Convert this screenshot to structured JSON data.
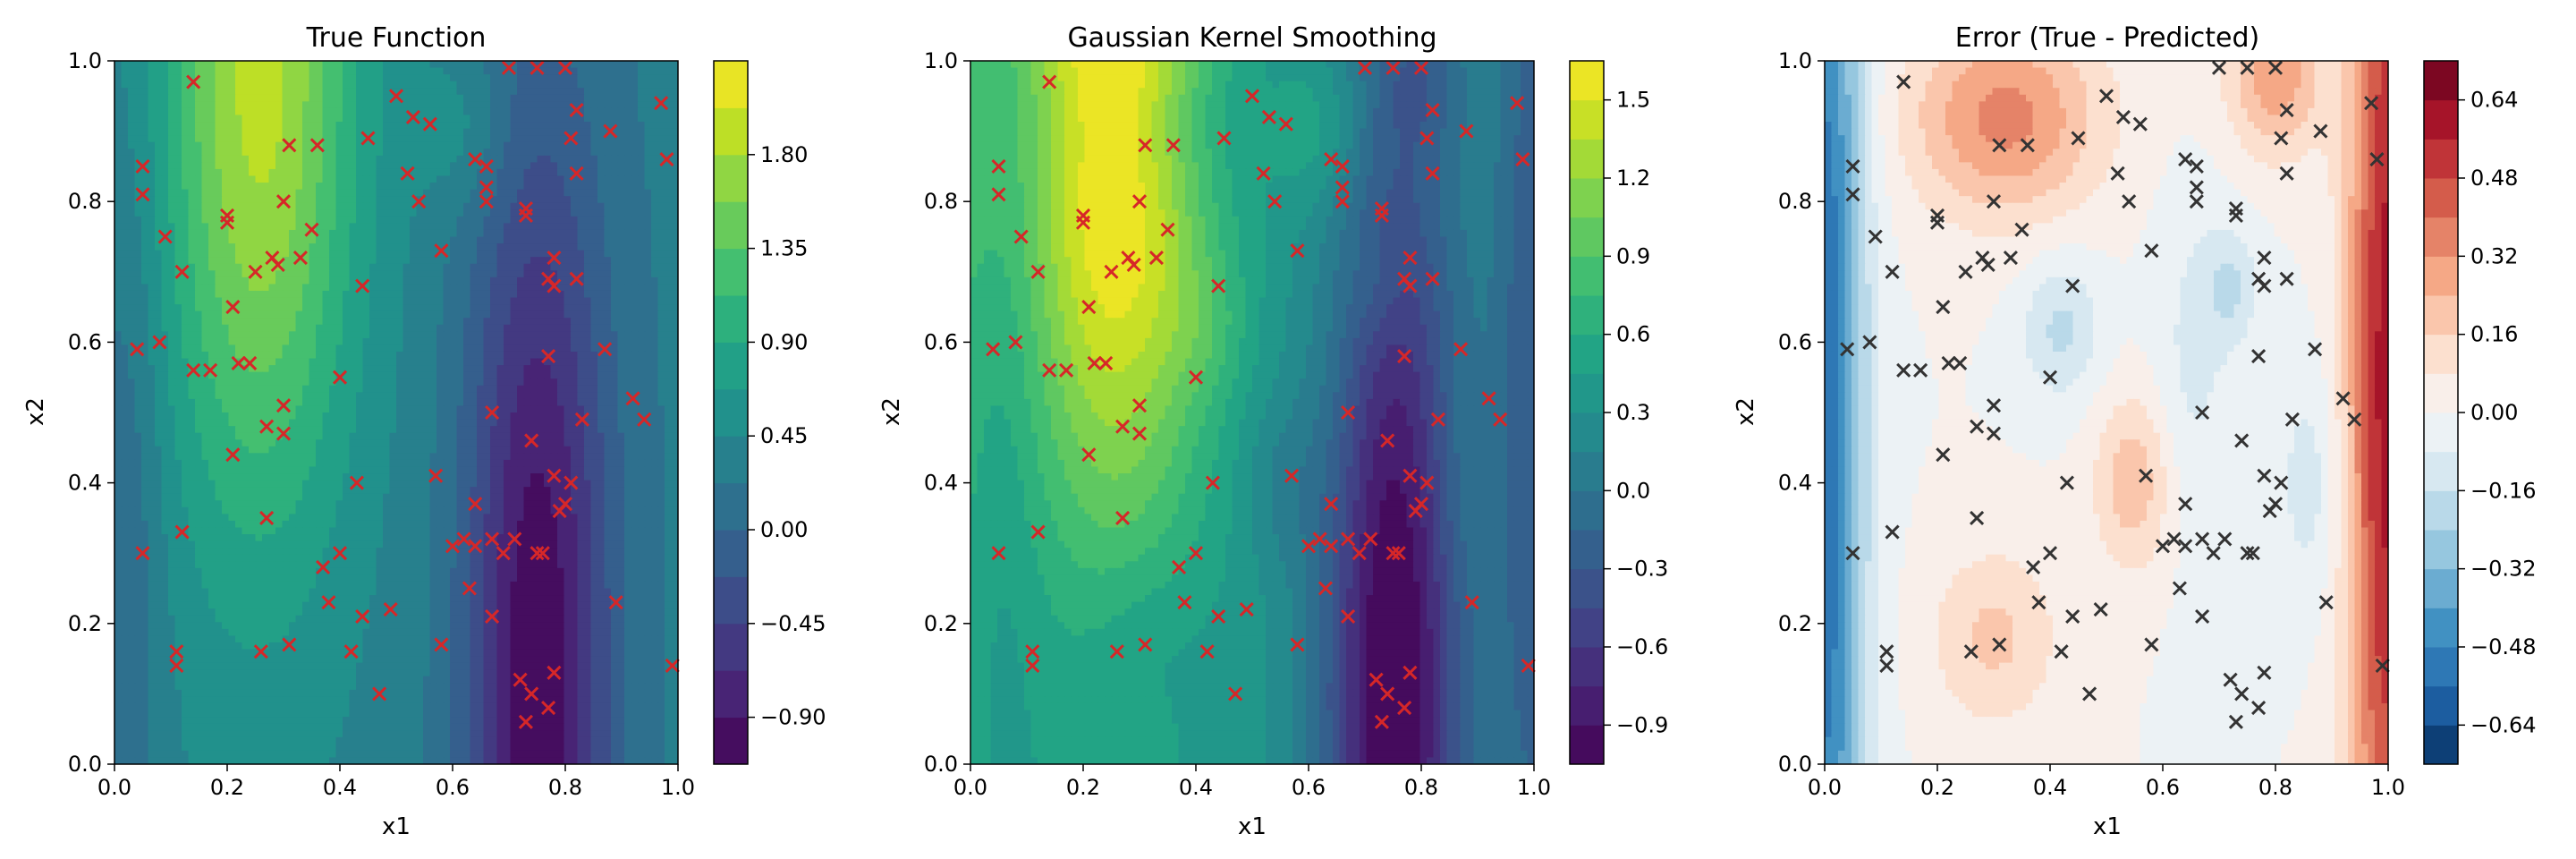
{
  "chart_data": [
    {
      "type": "contour",
      "title": "True Function",
      "xlabel": "x1",
      "ylabel": "x2",
      "xlim": [
        0.0,
        1.0
      ],
      "ylim": [
        0.0,
        1.0
      ],
      "x_ticks": [
        "0.0",
        "0.2",
        "0.4",
        "0.6",
        "0.8",
        "1.0"
      ],
      "y_ticks": [
        "0.0",
        "0.2",
        "0.4",
        "0.6",
        "0.8",
        "1.0"
      ],
      "colormap": "viridis",
      "marker_color": "#d62728",
      "marker": "x",
      "colorbar": {
        "range": [
          -1.125,
          2.25
        ],
        "levels": 15,
        "ticks": [
          "−0.90",
          "−0.45",
          "0.00",
          "0.45",
          "0.90",
          "1.35",
          "1.80"
        ],
        "tick_values": [
          -0.9,
          -0.45,
          0.0,
          0.45,
          0.9,
          1.35,
          1.8
        ]
      }
    },
    {
      "type": "contour",
      "title": "Gaussian Kernel Smoothing",
      "xlabel": "x1",
      "ylabel": "x2",
      "xlim": [
        0.0,
        1.0
      ],
      "ylim": [
        0.0,
        1.0
      ],
      "x_ticks": [
        "0.0",
        "0.2",
        "0.4",
        "0.6",
        "0.8",
        "1.0"
      ],
      "y_ticks": [
        "0.0",
        "0.2",
        "0.4",
        "0.6",
        "0.8",
        "1.0"
      ],
      "colormap": "viridis",
      "marker_color": "#d62728",
      "marker": "x",
      "colorbar": {
        "range": [
          -1.05,
          1.65
        ],
        "levels": 18,
        "ticks": [
          "−0.9",
          "−0.6",
          "−0.3",
          "0.0",
          "0.3",
          "0.6",
          "0.9",
          "1.2",
          "1.5"
        ],
        "tick_values": [
          -0.9,
          -0.6,
          -0.3,
          0.0,
          0.3,
          0.6,
          0.9,
          1.2,
          1.5
        ]
      }
    },
    {
      "type": "contour",
      "title": "Error (True - Predicted)",
      "xlabel": "x1",
      "ylabel": "x2",
      "xlim": [
        0.0,
        1.0
      ],
      "ylim": [
        0.0,
        1.0
      ],
      "x_ticks": [
        "0.0",
        "0.2",
        "0.4",
        "0.6",
        "0.8",
        "1.0"
      ],
      "y_ticks": [
        "0.0",
        "0.2",
        "0.4",
        "0.6",
        "0.8",
        "1.0"
      ],
      "colormap": "RdBu_r",
      "marker_color": "#333333",
      "marker": "x",
      "colorbar": {
        "range": [
          -0.72,
          0.72
        ],
        "levels": 18,
        "ticks": [
          "−0.64",
          "−0.48",
          "−0.32",
          "−0.16",
          "0.00",
          "0.16",
          "0.32",
          "0.48",
          "0.64"
        ],
        "tick_values": [
          -0.64,
          -0.48,
          -0.32,
          -0.16,
          0.0,
          0.16,
          0.32,
          0.48,
          0.64
        ]
      }
    }
  ],
  "sample_points": [
    [
      0.04,
      0.59
    ],
    [
      0.05,
      0.85
    ],
    [
      0.05,
      0.81
    ],
    [
      0.05,
      0.3
    ],
    [
      0.08,
      0.6
    ],
    [
      0.09,
      0.75
    ],
    [
      0.11,
      0.16
    ],
    [
      0.11,
      0.14
    ],
    [
      0.12,
      0.33
    ],
    [
      0.12,
      0.7
    ],
    [
      0.14,
      0.97
    ],
    [
      0.14,
      0.56
    ],
    [
      0.17,
      0.56
    ],
    [
      0.2,
      0.77
    ],
    [
      0.2,
      0.78
    ],
    [
      0.21,
      0.44
    ],
    [
      0.21,
      0.65
    ],
    [
      0.22,
      0.57
    ],
    [
      0.24,
      0.57
    ],
    [
      0.25,
      0.7
    ],
    [
      0.26,
      0.16
    ],
    [
      0.27,
      0.35
    ],
    [
      0.27,
      0.48
    ],
    [
      0.28,
      0.72
    ],
    [
      0.29,
      0.71
    ],
    [
      0.3,
      0.47
    ],
    [
      0.3,
      0.51
    ],
    [
      0.3,
      0.8
    ],
    [
      0.31,
      0.88
    ],
    [
      0.31,
      0.17
    ],
    [
      0.33,
      0.72
    ],
    [
      0.35,
      0.76
    ],
    [
      0.36,
      0.88
    ],
    [
      0.37,
      0.28
    ],
    [
      0.38,
      0.23
    ],
    [
      0.4,
      0.55
    ],
    [
      0.4,
      0.3
    ],
    [
      0.42,
      0.16
    ],
    [
      0.43,
      0.4
    ],
    [
      0.44,
      0.68
    ],
    [
      0.44,
      0.21
    ],
    [
      0.45,
      0.89
    ],
    [
      0.47,
      0.1
    ],
    [
      0.49,
      0.22
    ],
    [
      0.5,
      0.95
    ],
    [
      0.52,
      0.84
    ],
    [
      0.53,
      0.92
    ],
    [
      0.54,
      0.8
    ],
    [
      0.56,
      0.91
    ],
    [
      0.57,
      0.41
    ],
    [
      0.58,
      0.73
    ],
    [
      0.58,
      0.17
    ],
    [
      0.6,
      0.31
    ],
    [
      0.62,
      0.32
    ],
    [
      0.63,
      0.25
    ],
    [
      0.64,
      0.31
    ],
    [
      0.64,
      0.37
    ],
    [
      0.64,
      0.86
    ],
    [
      0.66,
      0.8
    ],
    [
      0.66,
      0.82
    ],
    [
      0.66,
      0.85
    ],
    [
      0.67,
      0.21
    ],
    [
      0.67,
      0.5
    ],
    [
      0.67,
      0.32
    ],
    [
      0.69,
      0.3
    ],
    [
      0.7,
      0.99
    ],
    [
      0.71,
      0.32
    ],
    [
      0.72,
      0.12
    ],
    [
      0.73,
      0.78
    ],
    [
      0.73,
      0.79
    ],
    [
      0.73,
      0.06
    ],
    [
      0.74,
      0.46
    ],
    [
      0.74,
      0.1
    ],
    [
      0.75,
      0.3
    ],
    [
      0.75,
      0.99
    ],
    [
      0.76,
      0.3
    ],
    [
      0.77,
      0.08
    ],
    [
      0.77,
      0.69
    ],
    [
      0.77,
      0.58
    ],
    [
      0.78,
      0.72
    ],
    [
      0.78,
      0.41
    ],
    [
      0.78,
      0.68
    ],
    [
      0.78,
      0.13
    ],
    [
      0.79,
      0.36
    ],
    [
      0.8,
      0.37
    ],
    [
      0.8,
      0.99
    ],
    [
      0.81,
      0.4
    ],
    [
      0.81,
      0.89
    ],
    [
      0.82,
      0.84
    ],
    [
      0.82,
      0.93
    ],
    [
      0.82,
      0.69
    ],
    [
      0.83,
      0.49
    ],
    [
      0.87,
      0.59
    ],
    [
      0.88,
      0.9
    ],
    [
      0.89,
      0.23
    ],
    [
      0.92,
      0.52
    ],
    [
      0.94,
      0.49
    ],
    [
      0.97,
      0.94
    ],
    [
      0.98,
      0.86
    ],
    [
      0.99,
      0.14
    ]
  ]
}
